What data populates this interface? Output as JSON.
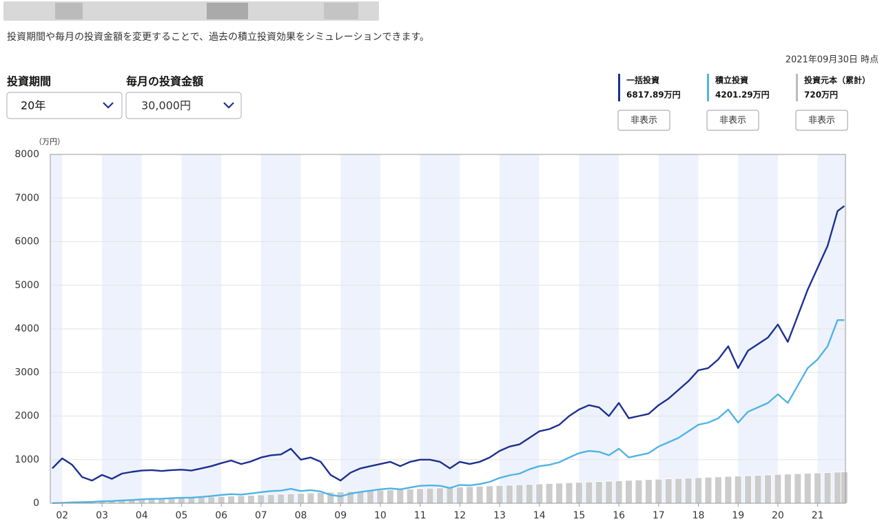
{
  "description": "投資期間や毎月の投資金額を変更することで、過去の積立投資効果をシミュレーションできます。",
  "as_of": "2021年09月30日 時点",
  "controls": [
    {
      "label": "投資期間",
      "value": "20年"
    },
    {
      "label": "毎月の投資金額",
      "value": "30,000円"
    }
  ],
  "legend_values": [
    "6817.89万円",
    "4201.29万円",
    "720万円"
  ],
  "hide_button": "非表示",
  "chart_data": {
    "type": "line",
    "y_unit": "（万円）",
    "x": [
      2001.75,
      2002,
      2002.25,
      2002.5,
      2002.75,
      2003,
      2003.25,
      2003.5,
      2003.75,
      2004,
      2004.25,
      2004.5,
      2004.75,
      2005,
      2005.25,
      2005.5,
      2005.75,
      2006,
      2006.25,
      2006.5,
      2006.75,
      2007,
      2007.25,
      2007.5,
      2007.75,
      2008,
      2008.25,
      2008.5,
      2008.75,
      2009,
      2009.25,
      2009.5,
      2009.75,
      2010,
      2010.25,
      2010.5,
      2010.75,
      2011,
      2011.25,
      2011.5,
      2011.75,
      2012,
      2012.25,
      2012.5,
      2012.75,
      2013,
      2013.25,
      2013.5,
      2013.75,
      2014,
      2014.25,
      2014.5,
      2014.75,
      2015,
      2015.25,
      2015.5,
      2015.75,
      2016,
      2016.25,
      2016.5,
      2016.75,
      2017,
      2017.25,
      2017.5,
      2017.75,
      2018,
      2018.25,
      2018.5,
      2018.75,
      2019,
      2019.25,
      2019.5,
      2019.75,
      2020,
      2020.25,
      2020.5,
      2020.75,
      2021,
      2021.25,
      2021.5,
      2021.67
    ],
    "series": [
      {
        "name": "一括投資",
        "color": "#1b2f8f",
        "values": [
          800,
          1030,
          880,
          600,
          520,
          650,
          560,
          680,
          720,
          750,
          760,
          740,
          760,
          770,
          750,
          800,
          850,
          920,
          980,
          900,
          960,
          1050,
          1100,
          1120,
          1250,
          1000,
          1050,
          950,
          650,
          520,
          700,
          800,
          850,
          900,
          950,
          850,
          950,
          1000,
          1000,
          950,
          800,
          950,
          900,
          950,
          1050,
          1200,
          1300,
          1350,
          1500,
          1650,
          1700,
          1800,
          2000,
          2150,
          2250,
          2200,
          2000,
          2300,
          1950,
          2000,
          2050,
          2250,
          2400,
          2600,
          2800,
          3050,
          3100,
          3300,
          3600,
          3100,
          3500,
          3650,
          3800,
          4100,
          3700,
          4300,
          4900,
          5400,
          5900,
          6700,
          6817.89
        ]
      },
      {
        "name": "積立投資",
        "color": "#4fb3e3",
        "values": [
          3,
          10,
          20,
          25,
          30,
          45,
          50,
          65,
          75,
          90,
          100,
          105,
          115,
          125,
          130,
          145,
          165,
          190,
          210,
          200,
          225,
          255,
          280,
          290,
          330,
          280,
          300,
          270,
          190,
          160,
          220,
          260,
          290,
          320,
          340,
          320,
          360,
          400,
          410,
          400,
          350,
          420,
          410,
          440,
          490,
          580,
          640,
          680,
          780,
          850,
          880,
          940,
          1050,
          1150,
          1200,
          1180,
          1100,
          1250,
          1050,
          1100,
          1150,
          1300,
          1400,
          1500,
          1650,
          1800,
          1850,
          1950,
          2150,
          1850,
          2100,
          2200,
          2300,
          2500,
          2300,
          2700,
          3100,
          3300,
          3600,
          4200,
          4201.29
        ]
      },
      {
        "name": "投資元本（累計）",
        "color": "#cccccc",
        "mark": "bar",
        "values": [
          3,
          12,
          21,
          30,
          39,
          48,
          57,
          66,
          75,
          84,
          93,
          102,
          111,
          120,
          129,
          138,
          147,
          156,
          165,
          174,
          183,
          192,
          201,
          210,
          219,
          228,
          237,
          246,
          255,
          264,
          273,
          282,
          291,
          300,
          309,
          318,
          327,
          336,
          345,
          354,
          363,
          372,
          381,
          390,
          399,
          408,
          417,
          426,
          435,
          444,
          453,
          462,
          471,
          480,
          489,
          498,
          507,
          516,
          525,
          534,
          543,
          552,
          561,
          570,
          579,
          588,
          597,
          606,
          615,
          624,
          633,
          642,
          651,
          660,
          669,
          678,
          687,
          696,
          705,
          714,
          720
        ]
      }
    ],
    "xlim": [
      2001.7,
      2021.7
    ],
    "xticks": [
      {
        "value": 2002,
        "label": "02"
      },
      {
        "value": 2003,
        "label": "03"
      },
      {
        "value": 2004,
        "label": "04"
      },
      {
        "value": 2005,
        "label": "05"
      },
      {
        "value": 2006,
        "label": "06"
      },
      {
        "value": 2007,
        "label": "07"
      },
      {
        "value": 2008,
        "label": "08"
      },
      {
        "value": 2009,
        "label": "09"
      },
      {
        "value": 2010,
        "label": "10"
      },
      {
        "value": 2011,
        "label": "11"
      },
      {
        "value": 2012,
        "label": "12"
      },
      {
        "value": 2013,
        "label": "13"
      },
      {
        "value": 2014,
        "label": "14"
      },
      {
        "value": 2015,
        "label": "15"
      },
      {
        "value": 2016,
        "label": "16"
      },
      {
        "value": 2017,
        "label": "17"
      },
      {
        "value": 2018,
        "label": "18"
      },
      {
        "value": 2019,
        "label": "19"
      },
      {
        "value": 2020,
        "label": "20"
      },
      {
        "value": 2021,
        "label": "21"
      }
    ],
    "ylim": [
      0,
      8000
    ],
    "yticks": [
      0,
      1000,
      2000,
      3000,
      4000,
      5000,
      6000,
      7000,
      8000
    ],
    "grid": true
  }
}
